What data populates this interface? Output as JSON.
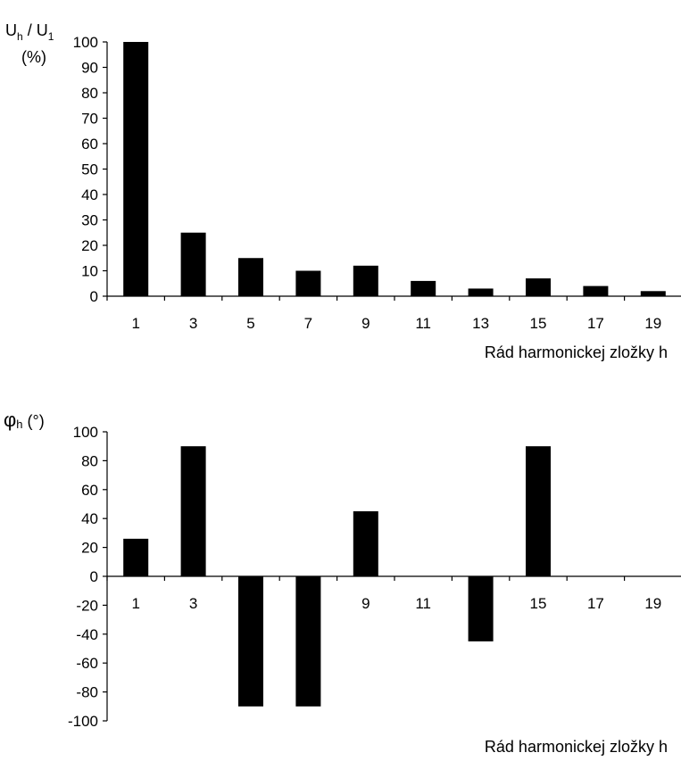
{
  "chart_data": [
    {
      "type": "bar",
      "ylabel_main": "U",
      "ylabel_sub_h": "h",
      "ylabel_slash": " / U",
      "ylabel_sub_1": "1",
      "ylabel_unit": "(%)",
      "xlabel": "Rád harmonickej zložky h",
      "categories": [
        "1",
        "3",
        "5",
        "7",
        "9",
        "11",
        "13",
        "15",
        "17",
        "19"
      ],
      "values": [
        100,
        25,
        15,
        10,
        12,
        6,
        3,
        7,
        4,
        2
      ],
      "ylim": [
        0,
        100
      ],
      "yticks": [
        "0",
        "10",
        "20",
        "30",
        "40",
        "50",
        "60",
        "70",
        "80",
        "90",
        "100"
      ],
      "bar_color": "#000000"
    },
    {
      "type": "bar",
      "ylabel_main": "φ",
      "ylabel_sub_h": "h",
      "ylabel_unit": " (°)",
      "xlabel": "Rád harmonickej zložky h",
      "categories": [
        "1",
        "3",
        "5",
        "7",
        "9",
        "11",
        "13",
        "15",
        "17",
        "19"
      ],
      "values": [
        26,
        90,
        -90,
        -90,
        45,
        0,
        -45,
        90,
        0,
        0
      ],
      "ylim": [
        -100,
        100
      ],
      "yticks": [
        "-100",
        "-80",
        "-60",
        "-40",
        "-20",
        "0",
        "20",
        "40",
        "60",
        "80",
        "100"
      ],
      "bar_color": "#000000"
    }
  ]
}
